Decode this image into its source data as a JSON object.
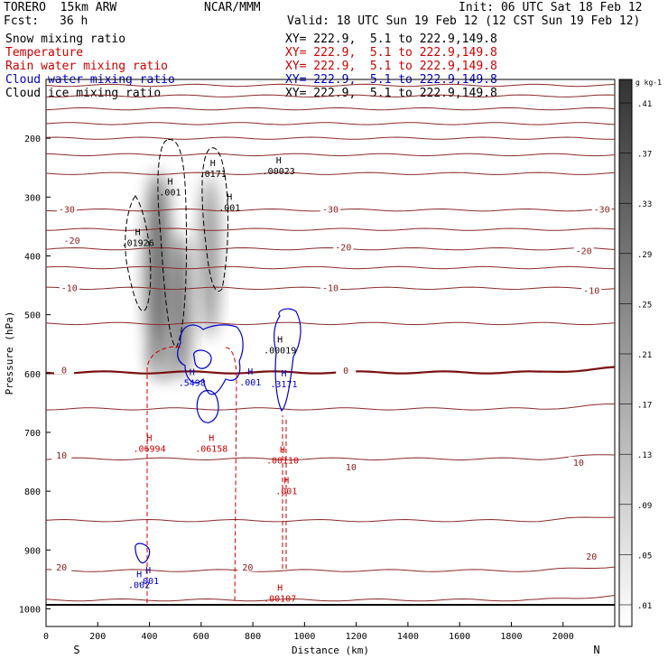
{
  "header": {
    "model": "TORERO  15km ARW",
    "org": "NCAR/MMM",
    "init": "Init: 06 UTC Sat 18 Feb 12",
    "fcst_label": "Fcst:",
    "fcst_value": "36 h",
    "valid": "Valid: 18 UTC Sun 19 Feb 12 (12 CST Sun 19 Feb 12)"
  },
  "fields": [
    {
      "name": "Snow mixing ratio",
      "color": "#000000",
      "xy": "XY= 222.9,  5.1 to 222.9,149.8",
      "xy_color": "#000000"
    },
    {
      "name": "Temperature",
      "color": "#cc0000",
      "xy": "XY= 222.9,  5.1 to 222.9,149.8",
      "xy_color": "#cc0000"
    },
    {
      "name": "Rain water mixing ratio",
      "color": "#cc0000",
      "xy": "XY= 222.9,  5.1 to 222.9,149.8",
      "xy_color": "#cc0000"
    },
    {
      "name": "Cloud water mixing ratio",
      "color": "#0000cc",
      "xy": "XY= 222.9,  5.1 to 222.9,149.8",
      "xy_color": "#0000cc"
    },
    {
      "name": "Cloud ice mixing ratio",
      "color": "#000000",
      "xy": "XY= 222.9,  5.1 to 222.9,149.8",
      "xy_color": "#000000"
    }
  ],
  "chart_data": {
    "type": "cross-section contour",
    "xlabel": "Distance (km)",
    "ylabel": "Pressure (hPa)",
    "xlim": [
      0,
      2200
    ],
    "ylim": [
      1030,
      100
    ],
    "x_ticks": [
      0,
      200,
      400,
      600,
      800,
      1000,
      1200,
      1400,
      1600,
      1800,
      2000
    ],
    "y_ticks": [
      200,
      300,
      400,
      500,
      600,
      700,
      800,
      900,
      1000
    ],
    "end_left": "S",
    "end_right": "N",
    "colorbar": {
      "unit": "g kg-1",
      "levels": [
        ".01",
        ".05",
        ".09",
        ".13",
        ".17",
        ".21",
        ".25",
        ".29",
        ".33",
        ".37",
        ".41"
      ]
    },
    "temperature_labels": [
      {
        "text": "-30",
        "x": 80,
        "p": 322
      },
      {
        "text": "-30",
        "x": 1100,
        "p": 322
      },
      {
        "text": "-30",
        "x": 2150,
        "p": 322
      },
      {
        "text": "-20",
        "x": 100,
        "p": 375
      },
      {
        "text": "-20",
        "x": 1150,
        "p": 386
      },
      {
        "text": "-20",
        "x": 2080,
        "p": 392
      },
      {
        "text": "-10",
        "x": 90,
        "p": 455
      },
      {
        "text": "-10",
        "x": 1100,
        "p": 455
      },
      {
        "text": "-10",
        "x": 2110,
        "p": 460
      },
      {
        "text": "0",
        "x": 70,
        "p": 595
      },
      {
        "text": "0",
        "x": 1160,
        "p": 596
      },
      {
        "text": "10",
        "x": 60,
        "p": 740
      },
      {
        "text": "10",
        "x": 1180,
        "p": 760
      },
      {
        "text": "10",
        "x": 2060,
        "p": 752
      },
      {
        "text": "20",
        "x": 60,
        "p": 930
      },
      {
        "text": "20",
        "x": 780,
        "p": 930
      },
      {
        "text": "20",
        "x": 2110,
        "p": 912
      }
    ],
    "maxima_labels": [
      {
        "text": ".01926",
        "x": 355,
        "p": 380,
        "field": "cloud ice"
      },
      {
        "text": ".001",
        "x": 480,
        "p": 294,
        "field": "cloud ice"
      },
      {
        "text": ".0171",
        "x": 645,
        "p": 263,
        "field": "cloud ice"
      },
      {
        "text": ".001",
        "x": 710,
        "p": 320,
        "field": "cloud ice"
      },
      {
        "text": ".00023",
        "x": 900,
        "p": 258,
        "field": "snow"
      },
      {
        "text": ".5498",
        "x": 565,
        "p": 618,
        "field": "cloud water"
      },
      {
        "text": ".001",
        "x": 790,
        "p": 617,
        "field": "cloud water"
      },
      {
        "text": ".00019",
        "x": 905,
        "p": 563,
        "field": "snow"
      },
      {
        "text": ".3171",
        "x": 920,
        "p": 620,
        "field": "cloud water"
      },
      {
        "text": ".06994",
        "x": 400,
        "p": 730,
        "field": "rain water"
      },
      {
        "text": ".06158",
        "x": 640,
        "p": 730,
        "field": "rain water"
      },
      {
        "text": ".00110",
        "x": 915,
        "p": 750,
        "field": "rain water"
      },
      {
        "text": ".001",
        "x": 930,
        "p": 802,
        "field": "rain water"
      },
      {
        "text": ".00107",
        "x": 905,
        "p": 985,
        "field": "rain water"
      },
      {
        "text": ".001",
        "x": 395,
        "p": 955,
        "field": "cloud water"
      },
      {
        "text": ".002",
        "x": 360,
        "p": 962,
        "field": "cloud water"
      }
    ],
    "isotherms": [
      {
        "p": 110,
        "value": "-60"
      },
      {
        "p": 128,
        "value": "-60"
      },
      {
        "p": 150,
        "value": "-55"
      },
      {
        "p": 175,
        "value": "-50"
      },
      {
        "p": 200,
        "value": "-45"
      },
      {
        "p": 228,
        "value": "-40"
      },
      {
        "p": 260,
        "value": "-35"
      },
      {
        "p": 322,
        "value": "-30"
      },
      {
        "p": 355,
        "value": "-25"
      },
      {
        "p": 388,
        "value": "-20"
      },
      {
        "p": 420,
        "value": "-15"
      },
      {
        "p": 455,
        "value": "-10"
      },
      {
        "p": 515,
        "value": "-5"
      },
      {
        "p": 598,
        "value": "0"
      },
      {
        "p": 660,
        "value": "5"
      },
      {
        "p": 745,
        "value": "10"
      },
      {
        "p": 850,
        "value": "15"
      },
      {
        "p": 935,
        "value": "20"
      },
      {
        "p": 985,
        "value": "25"
      }
    ],
    "surface_pressure": 1010
  }
}
